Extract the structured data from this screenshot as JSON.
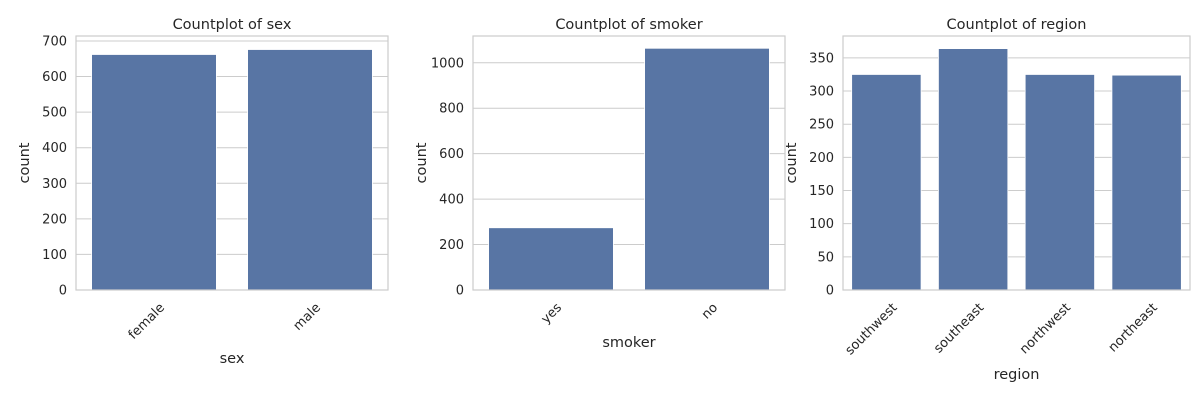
{
  "style": {
    "bar_color": "#5875a4",
    "grid_color": "#cccccc"
  },
  "chart_data": [
    {
      "type": "bar",
      "title": "Countplot of sex",
      "xlabel": "sex",
      "ylabel": "count",
      "categories": [
        "female",
        "male"
      ],
      "values": [
        662,
        676
      ],
      "ylim": [
        0,
        714
      ],
      "yticks": [
        0,
        100,
        200,
        300,
        400,
        500,
        600,
        700
      ],
      "xtick_rotation": 45,
      "grid": true
    },
    {
      "type": "bar",
      "title": "Countplot of smoker",
      "xlabel": "smoker",
      "ylabel": "count",
      "categories": [
        "yes",
        "no"
      ],
      "values": [
        274,
        1064
      ],
      "ylim": [
        0,
        1118
      ],
      "yticks": [
        0,
        200,
        400,
        600,
        800,
        1000
      ],
      "xtick_rotation": 45,
      "grid": true
    },
    {
      "type": "bar",
      "title": "Countplot of region",
      "xlabel": "region",
      "ylabel": "count",
      "categories": [
        "southwest",
        "southeast",
        "northwest",
        "northeast"
      ],
      "values": [
        325,
        364,
        325,
        324
      ],
      "ylim": [
        0,
        383
      ],
      "yticks": [
        0,
        50,
        100,
        150,
        200,
        250,
        300,
        350
      ],
      "xtick_rotation": 45,
      "grid": true
    }
  ]
}
